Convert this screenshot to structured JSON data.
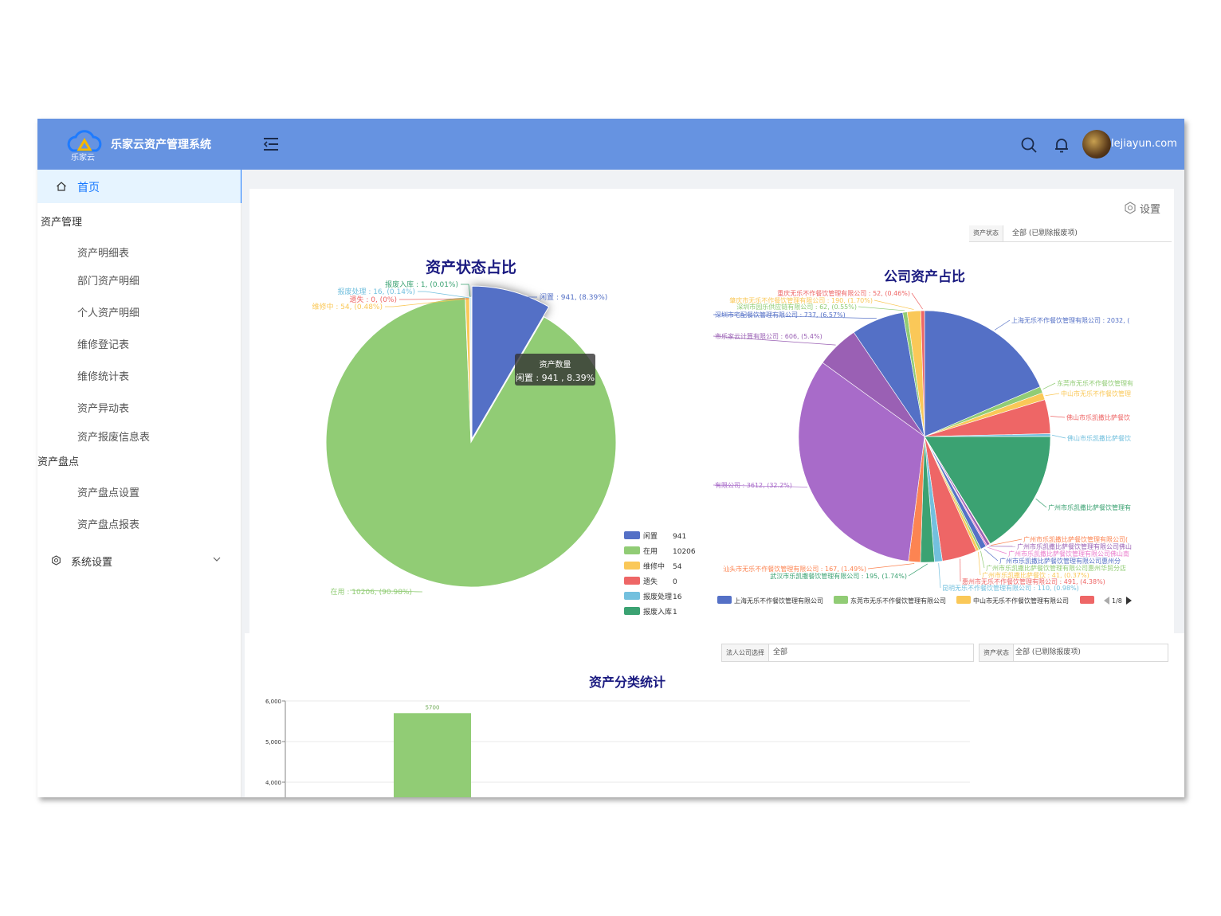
{
  "header": {
    "app_title": "乐家云资产管理系统",
    "logo_text": "乐家云",
    "user_name": "lejiayun.com",
    "colors": {
      "topbar": "#6693e1",
      "accent": "#1677ff"
    }
  },
  "sidebar": {
    "home": "首页",
    "group_asset_mgmt": "资产管理",
    "asset_mgmt_items": [
      "资产明细表",
      "部门资产明细",
      "个人资产明细",
      "维修登记表",
      "维修统计表",
      "资产异动表",
      "资产报废信息表"
    ],
    "group_inventory": "资产盘点",
    "inventory_items": [
      "资产盘点设置",
      "资产盘点报表"
    ],
    "system_settings": "系统设置"
  },
  "toolbar": {
    "settings_label": "设置"
  },
  "filters": {
    "top_status_label": "资产状态",
    "top_status_value": "全部 (已剔除报废项)",
    "company_label": "法人公司选择",
    "company_value": "全部",
    "bottom_status_label": "资产状态",
    "bottom_status_value": "全部 (已剔除报废项)"
  },
  "tooltip": {
    "title": "资产数量",
    "body": "闲置 : 941 , 8.39%"
  },
  "chart_data": [
    {
      "type": "pie",
      "title": "资产状态占比",
      "legend_placement": "bottom-right",
      "slices": [
        {
          "name": "闲置",
          "value": 941,
          "percent": "8.39%",
          "color": "#5470c6",
          "label": "闲置 : 941, (8.39%)"
        },
        {
          "name": "在用",
          "value": 10206,
          "percent": "90.98%",
          "color": "#91cc75",
          "label": "在用 : 10206, (90.98%)"
        },
        {
          "name": "维修中",
          "value": 54,
          "percent": "0.48%",
          "color": "#fac858",
          "label": "维修中 : 54, (0.48%)"
        },
        {
          "name": "遗失",
          "value": 0,
          "percent": "0%",
          "color": "#ee6666",
          "label": "遗失 : 0, (0%)"
        },
        {
          "name": "报废处理",
          "value": 16,
          "percent": "0.14%",
          "color": "#73c0de",
          "label": "报废处理 : 16, (0.14%)"
        },
        {
          "name": "报废入库",
          "value": 1,
          "percent": "0.01%",
          "color": "#3ba272",
          "label": "报废入库 : 1, (0.01%)"
        }
      ]
    },
    {
      "type": "pie",
      "title": "公司资产占比",
      "legend_placement": "bottom",
      "legend_page": "1/8",
      "legend_items": [
        {
          "name": "上海无乐不作餐饮管理有限公司",
          "color": "#5470c6"
        },
        {
          "name": "东莞市无乐不作餐饮管理有限公司",
          "color": "#91cc75"
        },
        {
          "name": "中山市无乐不作餐饮管理有限公司",
          "color": "#fac858"
        },
        {
          "name": "",
          "color": "#ee6666"
        }
      ],
      "slices": [
        {
          "value": 2032,
          "color": "#5470c6",
          "label": "上海无乐不作餐饮管理有限公司 : 2032, ("
        },
        {
          "value": 90,
          "color": "#91cc75",
          "label": "东莞市无乐不作餐饮管理有"
        },
        {
          "value": 100,
          "color": "#fac858",
          "label": "中山市无乐不作餐饮管理"
        },
        {
          "value": 480,
          "color": "#ee6666",
          "label": "佛山市乐凯撒比萨餐饮"
        },
        {
          "value": 40,
          "color": "#73c0de",
          "label": "佛山市乐凯撒比萨餐饮"
        },
        {
          "value": 1780,
          "color": "#3ba272",
          "label": "广州市乐凯撒比萨餐饮管理有"
        },
        {
          "value": 10,
          "color": "#fc8452",
          "label": "广州市乐凯撒比萨餐饮管理有限公司("
        },
        {
          "value": 40,
          "color": "#9a60b4",
          "label": "广州市乐凯撒比萨餐饮管理有限公司佛山"
        },
        {
          "value": 20,
          "color": "#ea7ccc",
          "label": "广州市乐凯撒比萨餐饮管理有限公司佛山南"
        },
        {
          "value": 80,
          "color": "#5470c6",
          "label": "广州市乐凯撒比萨餐饮管理有限公司惠州分"
        },
        {
          "value": 30,
          "color": "#91cc75",
          "label": "广州市乐凯撒比萨餐饮管理有限公司惠州华贸分店"
        },
        {
          "value": 41,
          "color": "#fac858",
          "label": "广州市乐凯撒比萨餐饮 : 41, (0.37%)"
        },
        {
          "value": 491,
          "color": "#ee6666",
          "label": "惠州市无乐不作餐饮管理有限公司 : 491, (4.38%)"
        },
        {
          "value": 110,
          "color": "#73c0de",
          "label": "昆明无乐不作餐饮管理有限公司 : 110, (0.98%)"
        },
        {
          "value": 195,
          "color": "#3ba272",
          "label": "武汉市乐凯撒餐饮管理有限公司 : 195, (1.74%)"
        },
        {
          "value": 167,
          "color": "#fc8452",
          "label": "汕头市无乐不作餐饮管理有限公司 : 167, (1.49%)"
        },
        {
          "value": 3612,
          "color": "#a86bc9",
          "label": "有限公司 : 3612, (32.2%)"
        },
        {
          "value": 606,
          "color": "#9a60b4",
          "label": "市乐家云计算有限公司 : 606, (5.4%)"
        },
        {
          "value": 737,
          "color": "#5470c6",
          "label": "深圳市宅配餐饮管理有限公司 : 737, (6.57%)"
        },
        {
          "value": 62,
          "color": "#91cc75",
          "label": "深圳市园乐供应链有限公司 : 62, (0.55%)"
        },
        {
          "value": 190,
          "color": "#fac858",
          "label": "肇庆市无乐不作餐饮管理有限公司 : 190, (1.70%)"
        },
        {
          "value": 52,
          "color": "#ee6666",
          "label": "重庆无乐不作餐饮管理有限公司 : 52, (0.46%)"
        }
      ]
    },
    {
      "type": "bar",
      "title": "资产分类统计",
      "ylim": [
        4000,
        6000
      ],
      "yticks": [
        "6,000",
        "5,000",
        "4,000"
      ],
      "bars": [
        {
          "value": 5700,
          "label": "5700",
          "color": "#91cc75"
        }
      ]
    }
  ]
}
